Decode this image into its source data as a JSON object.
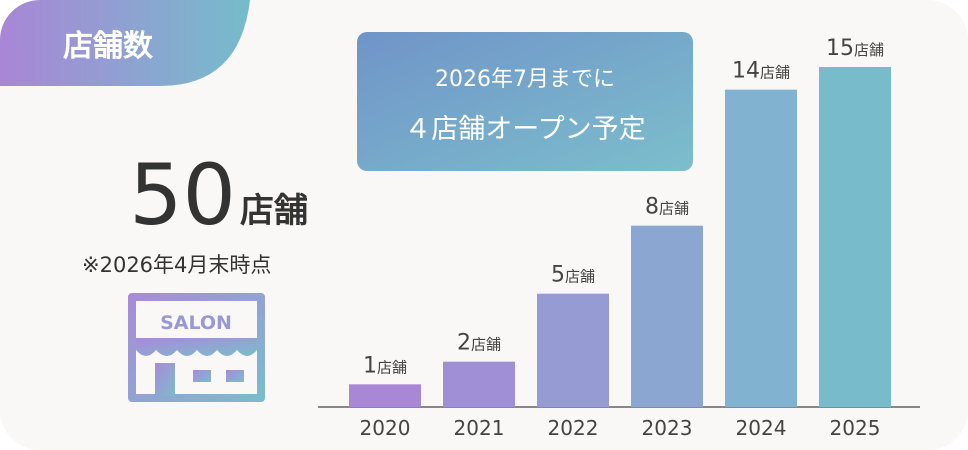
{
  "badge": "店舗数",
  "total_value": 50,
  "total_unit": "店舗",
  "note": "※2026年4月末時点",
  "icon_label": "SALON",
  "callout": {
    "line1": "2026年7月までに",
    "line2": "４店舗オープン予定"
  },
  "chart_data": {
    "type": "bar",
    "categories": [
      "2020",
      "2021",
      "2022",
      "2023",
      "2024",
      "2025"
    ],
    "values": [
      1,
      2,
      5,
      8,
      14,
      15
    ],
    "value_labels": [
      "1店舗",
      "2店舗",
      "5店舗",
      "8店舗",
      "14店舗",
      "15店舗"
    ],
    "colors": [
      "#a987d7",
      "#a08ed6",
      "#979bd4",
      "#8ca6d2",
      "#81b2cf",
      "#78bccb"
    ],
    "ylim": [
      0,
      15
    ]
  }
}
